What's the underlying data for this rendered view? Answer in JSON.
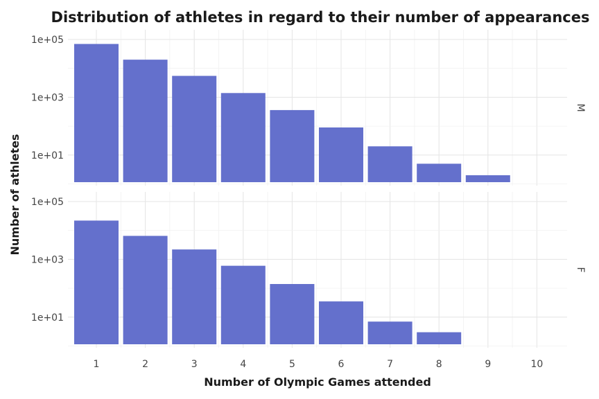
{
  "chart_data": {
    "type": "bar",
    "title": "Distribution of athletes in regard to their number of appearances",
    "xlabel": "Number of Olympic Games attended",
    "ylabel": "Number of athletes",
    "y_scale": "log10",
    "ylim": [
      1,
      100000
    ],
    "y_ticks": [
      10,
      1000,
      100000
    ],
    "y_tick_labels": [
      "1e+01",
      "1e+03",
      "1e+05"
    ],
    "categories": [
      "1",
      "2",
      "3",
      "4",
      "5",
      "6",
      "7",
      "8",
      "9",
      "10"
    ],
    "grid": true,
    "bar_color": "#6470CC",
    "panels": [
      {
        "strip_label": "M",
        "values": [
          70000,
          20000,
          5500,
          1400,
          360,
          90,
          20,
          5,
          2,
          null
        ]
      },
      {
        "strip_label": "F",
        "values": [
          22000,
          6500,
          2200,
          600,
          140,
          35,
          7,
          3,
          null,
          null
        ]
      }
    ]
  }
}
